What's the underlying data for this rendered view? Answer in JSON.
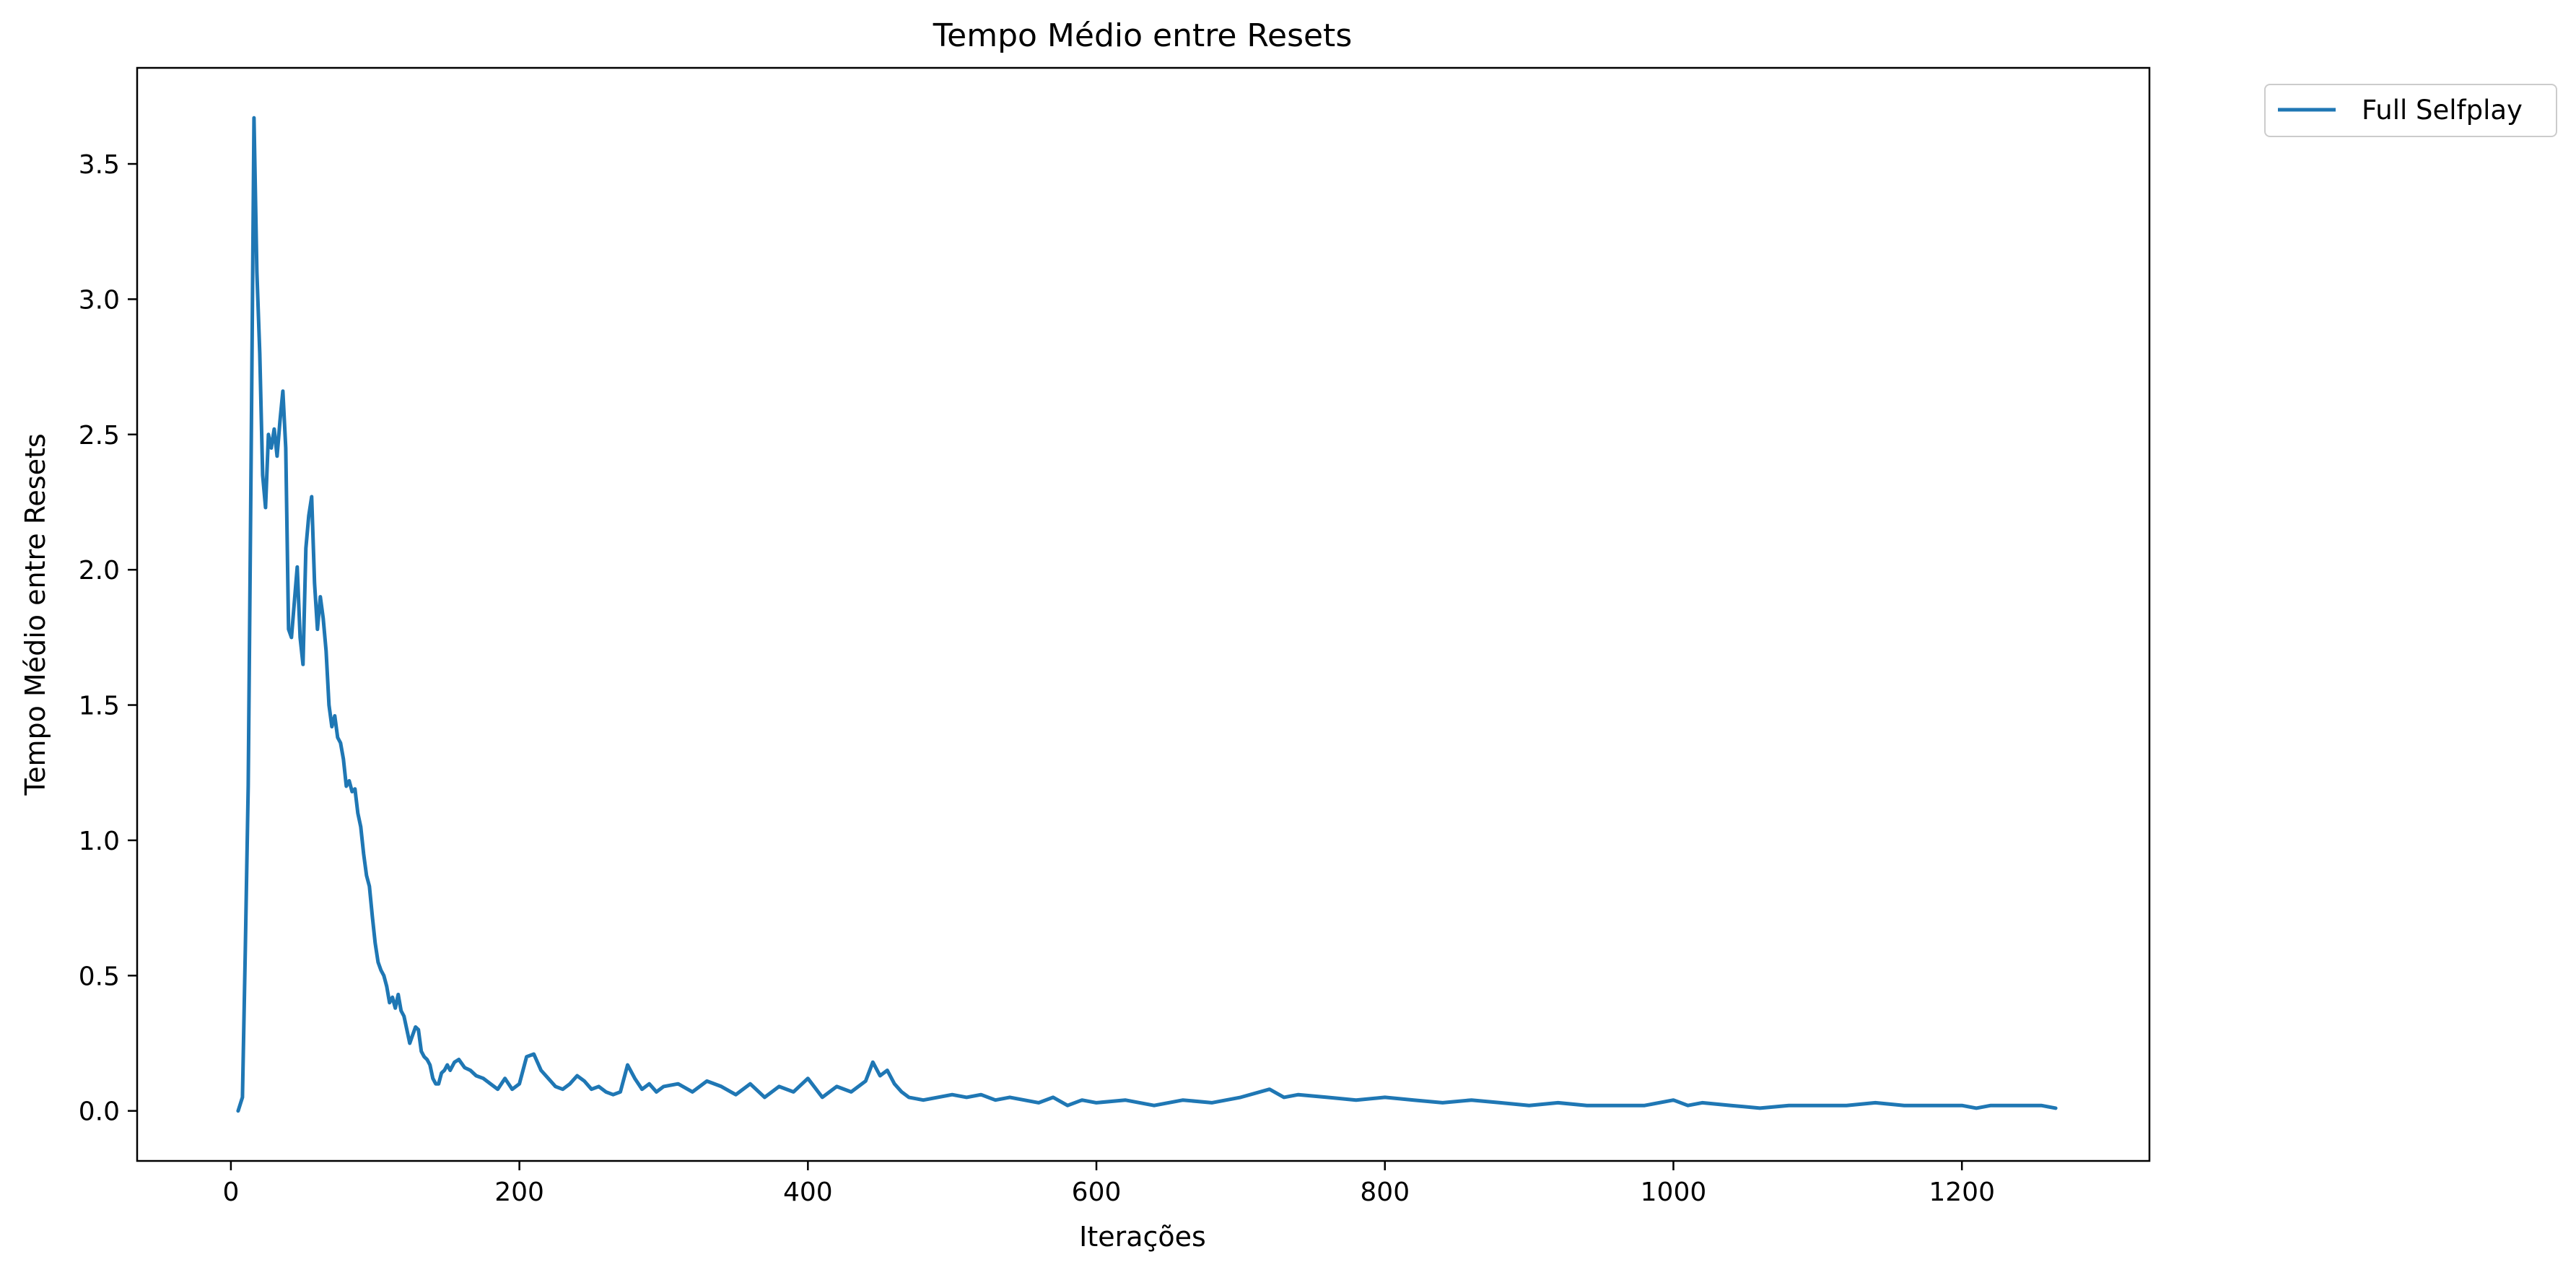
{
  "chart_data": {
    "type": "line",
    "title": "Tempo Médio entre Resets",
    "xlabel": "Iterações",
    "ylabel": "Tempo Médio entre Resets",
    "xlim": [
      -65,
      1330
    ],
    "ylim": [
      -0.185,
      3.855
    ],
    "xticks": [
      0,
      200,
      400,
      600,
      800,
      1000,
      1200
    ],
    "yticks": [
      0.0,
      0.5,
      1.0,
      1.5,
      2.0,
      2.5,
      3.0,
      3.5
    ],
    "xtick_labels": [
      "0",
      "200",
      "400",
      "600",
      "800",
      "1000",
      "1200"
    ],
    "ytick_labels": [
      "0.0",
      "0.5",
      "1.0",
      "1.5",
      "2.0",
      "2.5",
      "3.0",
      "3.5"
    ],
    "grid": false,
    "legend_position": "outside-top-right",
    "series": [
      {
        "name": "Full Selfplay",
        "color": "#1f77b4",
        "x": [
          5,
          8,
          10,
          12,
          14,
          16,
          18,
          20,
          22,
          24,
          26,
          28,
          30,
          32,
          34,
          36,
          38,
          40,
          42,
          44,
          46,
          48,
          50,
          52,
          54,
          56,
          58,
          60,
          62,
          64,
          66,
          68,
          70,
          72,
          74,
          76,
          78,
          80,
          82,
          84,
          86,
          88,
          90,
          92,
          94,
          96,
          98,
          100,
          102,
          104,
          106,
          108,
          110,
          112,
          114,
          116,
          118,
          120,
          122,
          124,
          126,
          128,
          130,
          132,
          134,
          136,
          138,
          140,
          142,
          144,
          146,
          148,
          150,
          152,
          155,
          158,
          162,
          166,
          170,
          175,
          180,
          185,
          190,
          195,
          200,
          205,
          210,
          215,
          220,
          225,
          230,
          235,
          240,
          245,
          250,
          255,
          260,
          265,
          270,
          275,
          280,
          285,
          290,
          295,
          300,
          310,
          320,
          330,
          340,
          350,
          360,
          370,
          380,
          390,
          400,
          410,
          420,
          430,
          440,
          445,
          450,
          455,
          460,
          465,
          470,
          480,
          490,
          500,
          510,
          520,
          530,
          540,
          550,
          560,
          570,
          580,
          590,
          600,
          620,
          640,
          660,
          680,
          700,
          720,
          730,
          740,
          760,
          780,
          800,
          820,
          840,
          860,
          880,
          900,
          920,
          940,
          960,
          980,
          1000,
          1010,
          1020,
          1040,
          1060,
          1080,
          1100,
          1120,
          1140,
          1160,
          1180,
          1200,
          1210,
          1220,
          1240,
          1255,
          1265
        ],
        "y": [
          0.0,
          0.05,
          0.6,
          1.2,
          2.4,
          3.67,
          3.1,
          2.8,
          2.35,
          2.23,
          2.5,
          2.45,
          2.52,
          2.42,
          2.55,
          2.66,
          2.45,
          1.78,
          1.75,
          1.88,
          2.01,
          1.75,
          1.65,
          2.08,
          2.2,
          2.27,
          1.95,
          1.78,
          1.9,
          1.82,
          1.7,
          1.5,
          1.42,
          1.46,
          1.38,
          1.36,
          1.3,
          1.2,
          1.22,
          1.18,
          1.19,
          1.1,
          1.05,
          0.95,
          0.87,
          0.83,
          0.72,
          0.62,
          0.55,
          0.52,
          0.5,
          0.46,
          0.4,
          0.42,
          0.38,
          0.43,
          0.37,
          0.35,
          0.3,
          0.25,
          0.28,
          0.31,
          0.3,
          0.22,
          0.2,
          0.19,
          0.17,
          0.12,
          0.1,
          0.1,
          0.14,
          0.15,
          0.17,
          0.15,
          0.18,
          0.19,
          0.16,
          0.15,
          0.13,
          0.12,
          0.1,
          0.08,
          0.12,
          0.08,
          0.1,
          0.2,
          0.21,
          0.15,
          0.12,
          0.09,
          0.08,
          0.1,
          0.13,
          0.11,
          0.08,
          0.09,
          0.07,
          0.06,
          0.07,
          0.17,
          0.12,
          0.08,
          0.1,
          0.07,
          0.09,
          0.1,
          0.07,
          0.11,
          0.09,
          0.06,
          0.1,
          0.05,
          0.09,
          0.07,
          0.12,
          0.05,
          0.09,
          0.07,
          0.11,
          0.18,
          0.13,
          0.15,
          0.1,
          0.07,
          0.05,
          0.04,
          0.05,
          0.06,
          0.05,
          0.06,
          0.04,
          0.05,
          0.04,
          0.03,
          0.05,
          0.02,
          0.04,
          0.03,
          0.04,
          0.02,
          0.04,
          0.03,
          0.05,
          0.08,
          0.05,
          0.06,
          0.05,
          0.04,
          0.05,
          0.04,
          0.03,
          0.04,
          0.03,
          0.02,
          0.03,
          0.02,
          0.02,
          0.02,
          0.04,
          0.02,
          0.03,
          0.02,
          0.01,
          0.02,
          0.02,
          0.02,
          0.03,
          0.02,
          0.02,
          0.02,
          0.01,
          0.02,
          0.02,
          0.02,
          0.01
        ]
      }
    ]
  }
}
